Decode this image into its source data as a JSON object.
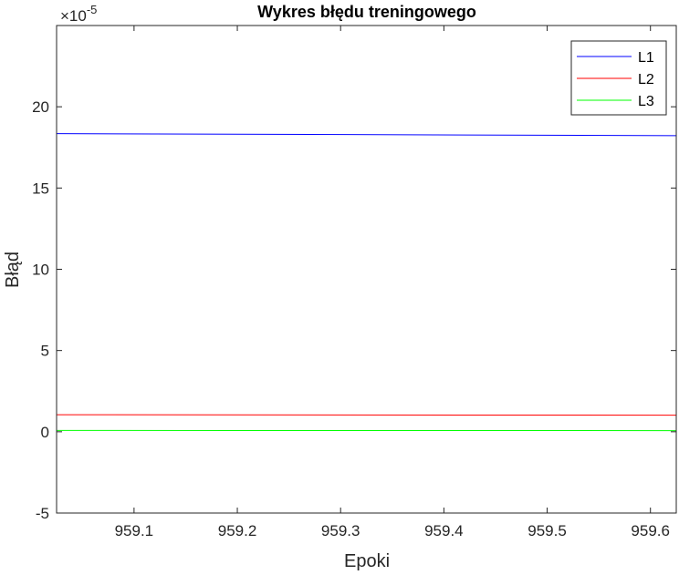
{
  "chart_data": {
    "type": "line",
    "title": "Wykres błędu treningowego",
    "xlabel": "Epoki",
    "ylabel": "Błąd",
    "y_exponent_base": "×10",
    "y_exponent_power": "-5",
    "xlim": [
      959.025,
      959.625
    ],
    "ylim": [
      -5,
      25
    ],
    "x_ticks": [
      959.1,
      959.2,
      959.3,
      959.4,
      959.5,
      959.6
    ],
    "x_tick_labels": [
      "959.1",
      "959.2",
      "959.3",
      "959.4",
      "959.5",
      "959.6"
    ],
    "y_ticks": [
      -5,
      0,
      5,
      10,
      15,
      20
    ],
    "y_tick_labels": [
      "-5",
      "0",
      "5",
      "10",
      "15",
      "20"
    ],
    "grid": false,
    "legend_position": "top-right",
    "x": [
      959.025,
      959.625
    ],
    "series": [
      {
        "name": "L1",
        "color": "#0000ff",
        "values": [
          18.35,
          18.22
        ]
      },
      {
        "name": "L2",
        "color": "#ff0000",
        "values": [
          1.05,
          1.02
        ]
      },
      {
        "name": "L3",
        "color": "#00ff00",
        "values": [
          0.08,
          0.07
        ]
      }
    ]
  }
}
